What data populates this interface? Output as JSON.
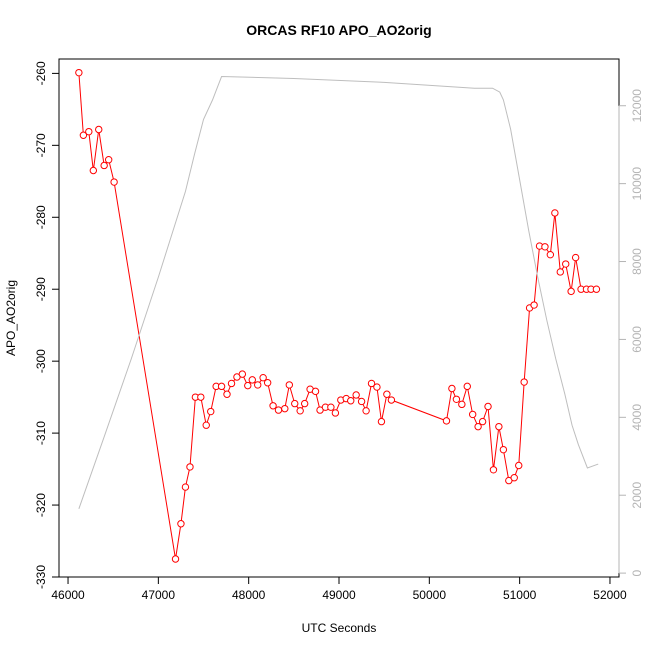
{
  "chart_data": {
    "type": "line",
    "title": "ORCAS RF10 APO_AO2orig",
    "xlabel": "UTC Seconds",
    "ylabel": "APO_AO2orig",
    "y2label": "",
    "xlim": [
      45900,
      52100
    ],
    "ylim": [
      -330,
      -258
    ],
    "y2lim": [
      -100,
      13200
    ],
    "x_ticks": [
      46000,
      47000,
      48000,
      49000,
      50000,
      51000,
      52000
    ],
    "y_ticks": [
      -330,
      -320,
      -310,
      -300,
      -290,
      -280,
      -270,
      -260
    ],
    "y2_ticks": [
      0,
      2000,
      4000,
      6000,
      8000,
      10000,
      12000
    ],
    "colors": {
      "series_main": "#ff0000",
      "series_secondary": "#bebebe",
      "axis": "#000000",
      "axis_right": "#b4b4b4"
    },
    "series": [
      {
        "axis": "left",
        "color": "#ff0000",
        "marker": "open-circle",
        "x": [
          46120,
          46170,
          46230,
          46280,
          46340,
          46400,
          46450,
          46510,
          47190,
          47250,
          47300,
          47350,
          47410,
          47470,
          47530,
          47580,
          47640,
          47700,
          47760,
          47810,
          47870,
          47930,
          47990,
          48040,
          48100,
          48160,
          48210,
          48270,
          48330,
          48400,
          48450,
          48510,
          48570,
          48620,
          48680,
          48740,
          48790,
          48850,
          48910,
          48960,
          49020,
          49080,
          49130,
          49190,
          49250,
          49300,
          49360,
          49420,
          49470,
          49530,
          49580,
          50190,
          50250,
          50300,
          50360,
          50420,
          50480,
          50540,
          50590,
          50650,
          50710,
          50770,
          50820,
          50880,
          50940,
          50990,
          51050,
          51110,
          51160,
          51220,
          51280,
          51340,
          51390,
          51450,
          51510,
          51570,
          51620,
          51680,
          51740,
          51790,
          51850
        ],
        "y": [
          -259.9,
          -268.6,
          -268.1,
          -273.5,
          -267.8,
          -272.8,
          -272.0,
          -275.1,
          -327.5,
          -322.6,
          -317.5,
          -314.7,
          -305.0,
          -305.0,
          -308.9,
          -307.0,
          -303.5,
          -303.5,
          -304.6,
          -303.1,
          -302.2,
          -301.8,
          -303.4,
          -302.6,
          -303.3,
          -302.3,
          -303.0,
          -306.2,
          -306.8,
          -306.6,
          -303.3,
          -305.9,
          -306.9,
          -305.9,
          -303.9,
          -304.2,
          -306.8,
          -306.4,
          -306.4,
          -307.2,
          -305.4,
          -305.2,
          -305.5,
          -304.7,
          -305.6,
          -306.9,
          -303.1,
          -303.6,
          -308.4,
          -304.6,
          -305.4,
          -308.3,
          -303.8,
          -305.3,
          -306.0,
          -303.5,
          -307.4,
          -309.1,
          -308.4,
          -306.3,
          -315.1,
          -309.1,
          -312.3,
          -316.6,
          -316.2,
          -314.5,
          -302.9,
          -292.6,
          -292.2,
          -284.0,
          -284.1,
          -285.2,
          -279.4,
          -287.6,
          -286.5,
          -290.3,
          -285.6,
          -290.0,
          -290.0,
          -290.0,
          -290.0
        ]
      },
      {
        "axis": "right",
        "color": "#bebebe",
        "marker": "none",
        "x": [
          46120,
          46400,
          46700,
          47000,
          47300,
          47400,
          47500,
          47600,
          47650,
          47700,
          48500,
          49500,
          50500,
          50700,
          50780,
          50820,
          50900,
          51000,
          51100,
          51200,
          51300,
          51400,
          51500,
          51580,
          51650,
          51750,
          51870
        ],
        "y": [
          1650,
          3500,
          5500,
          7600,
          9800,
          10750,
          11650,
          12150,
          12450,
          12750,
          12700,
          12600,
          12450,
          12450,
          12350,
          12150,
          11400,
          10100,
          8800,
          7600,
          6500,
          5500,
          4600,
          3800,
          3300,
          2700,
          2800
        ]
      }
    ]
  }
}
